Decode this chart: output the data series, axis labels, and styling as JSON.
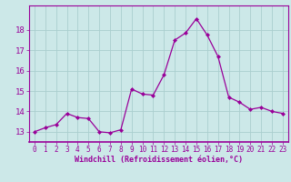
{
  "x": [
    0,
    1,
    2,
    3,
    4,
    5,
    6,
    7,
    8,
    9,
    10,
    11,
    12,
    13,
    14,
    15,
    16,
    17,
    18,
    19,
    20,
    21,
    22,
    23
  ],
  "y": [
    13.0,
    13.2,
    13.35,
    13.9,
    13.7,
    13.65,
    13.0,
    12.95,
    13.1,
    15.1,
    14.85,
    14.8,
    15.8,
    17.5,
    17.85,
    18.55,
    17.75,
    16.7,
    14.7,
    14.45,
    14.1,
    14.2,
    14.0,
    13.9
  ],
  "line_color": "#990099",
  "marker": "D",
  "marker_size": 2.0,
  "bg_color": "#cce8e8",
  "grid_color": "#aacece",
  "xlabel": "Windchill (Refroidissement éolien,°C)",
  "ylabel": "",
  "xlim": [
    -0.5,
    23.5
  ],
  "ylim": [
    12.5,
    19.2
  ],
  "xticks": [
    0,
    1,
    2,
    3,
    4,
    5,
    6,
    7,
    8,
    9,
    10,
    11,
    12,
    13,
    14,
    15,
    16,
    17,
    18,
    19,
    20,
    21,
    22,
    23
  ],
  "yticks": [
    13,
    14,
    15,
    16,
    17,
    18
  ],
  "axis_color": "#990099",
  "tick_color": "#990099",
  "xlabel_fontsize": 6.0,
  "tick_fontsize": 5.5,
  "ytick_fontsize": 6.5
}
